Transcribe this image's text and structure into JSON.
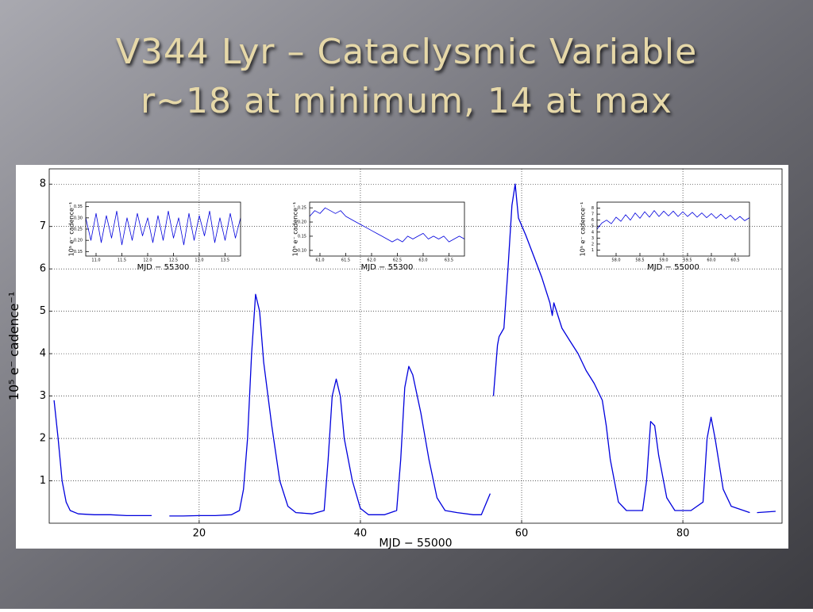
{
  "chart_data": [
    {
      "type": "line",
      "title": "V344 Lyr – Cataclysmic Variable",
      "subtitle": "r~18 at minimum, 14 at max",
      "xlabel": "MJD − 55000",
      "ylabel": "10⁵ e⁻ cadence⁻¹",
      "color": "#0000dd",
      "grid": true,
      "xlim": [
        1.4,
        92.3
      ],
      "ylim": [
        0,
        8.36
      ],
      "xticks": [
        20,
        40,
        60,
        80
      ],
      "yticks": [
        1,
        2,
        3,
        4,
        5,
        6,
        7,
        8
      ],
      "x": [
        2.0,
        2.5,
        3.0,
        3.5,
        4.0,
        5,
        7,
        9,
        11,
        13,
        14.1,
        15,
        16.3,
        18,
        20,
        22,
        24,
        25,
        25.5,
        26,
        26.5,
        27,
        27.5,
        28,
        29,
        30,
        31,
        32,
        34,
        35.5,
        36,
        36.5,
        37,
        37.5,
        38,
        39,
        40,
        41,
        43,
        44.5,
        45,
        45.5,
        46,
        46.5,
        47.5,
        48.5,
        49.5,
        50.5,
        52,
        54,
        55,
        56.1,
        56.3,
        56.5,
        57,
        57.2,
        57.8,
        58.3,
        58.8,
        59.2,
        59.6,
        60.5,
        61.5,
        62.5,
        63.5,
        63.8,
        64,
        65,
        66,
        67,
        68,
        69,
        70,
        70.5,
        71,
        72,
        73,
        75,
        75.5,
        76,
        76.5,
        77,
        78,
        79,
        81,
        82.5,
        83,
        83.5,
        84,
        85,
        86,
        88.3,
        88.8,
        89.2,
        91.5
      ],
      "values": [
        2.9,
        2.0,
        1.0,
        0.5,
        0.3,
        0.22,
        0.2,
        0.2,
        0.18,
        0.18,
        0.18,
        null,
        0.17,
        0.17,
        0.18,
        0.18,
        0.2,
        0.3,
        0.8,
        2.0,
        4.0,
        5.4,
        5.0,
        3.8,
        2.3,
        1.0,
        0.4,
        0.25,
        0.22,
        0.3,
        1.5,
        3.0,
        3.4,
        3.0,
        2.0,
        1.0,
        0.35,
        0.2,
        0.2,
        0.3,
        1.5,
        3.2,
        3.7,
        3.5,
        2.6,
        1.5,
        0.6,
        0.3,
        0.25,
        0.2,
        0.2,
        0.7,
        null,
        3.0,
        4.2,
        4.4,
        4.6,
        6.0,
        7.5,
        8.0,
        7.2,
        6.8,
        6.3,
        5.8,
        5.2,
        4.9,
        5.2,
        4.6,
        4.3,
        4.0,
        3.6,
        3.3,
        2.9,
        2.3,
        1.5,
        0.5,
        0.3,
        0.3,
        1.0,
        2.4,
        2.3,
        1.6,
        0.6,
        0.3,
        0.3,
        0.5,
        2.0,
        2.5,
        2.0,
        0.8,
        0.4,
        0.25,
        null,
        0.25,
        0.28
      ]
    },
    {
      "type": "line",
      "xlabel": "MJD − 55300",
      "ylabel": "10⁵ e⁻ cadence⁻¹",
      "color": "#0000dd",
      "grid": false,
      "xlim": [
        10.8,
        13.8
      ],
      "ylim": [
        0.13,
        0.37
      ],
      "xticks": [
        {
          "value": 11.0,
          "label": "11.0"
        },
        11.5,
        {
          "value": 12.0,
          "label": "12.0"
        },
        12.5,
        {
          "value": 13.0,
          "label": "13.0"
        },
        13.5
      ],
      "yticks": [
        0.15,
        {
          "value": 0.2,
          "label": "0.20"
        },
        0.25,
        {
          "value": 0.3,
          "label": "0.30"
        },
        0.35
      ],
      "x": [
        10.8,
        10.9,
        11.0,
        11.1,
        11.2,
        11.3,
        11.4,
        11.5,
        11.6,
        11.7,
        11.8,
        11.9,
        12.0,
        12.1,
        12.2,
        12.3,
        12.4,
        12.5,
        12.6,
        12.7,
        12.8,
        12.9,
        13.0,
        13.1,
        13.2,
        13.3,
        13.4,
        13.5,
        13.6,
        13.7,
        13.8
      ],
      "values": [
        0.3,
        0.2,
        0.32,
        0.19,
        0.31,
        0.21,
        0.33,
        0.18,
        0.3,
        0.2,
        0.32,
        0.22,
        0.3,
        0.19,
        0.31,
        0.2,
        0.33,
        0.21,
        0.3,
        0.18,
        0.32,
        0.2,
        0.31,
        0.22,
        0.33,
        0.19,
        0.3,
        0.2,
        0.32,
        0.21,
        0.3
      ]
    },
    {
      "type": "line",
      "xlabel": "MJD − 55300",
      "ylabel": "10⁵ e⁻ cadence⁻¹",
      "color": "#0000dd",
      "grid": false,
      "xlim": [
        60.8,
        63.8
      ],
      "ylim": [
        0.08,
        0.27
      ],
      "xticks": [
        {
          "value": 61.0,
          "label": "61.0"
        },
        61.5,
        {
          "value": 62.0,
          "label": "62.0"
        },
        62.5,
        {
          "value": 63.0,
          "label": "63.0"
        },
        63.5
      ],
      "yticks": [
        {
          "value": 0.1,
          "label": "0.10"
        },
        0.15,
        {
          "value": 0.2,
          "label": "0.20"
        },
        0.25
      ],
      "x": [
        60.8,
        60.9,
        61.0,
        61.1,
        61.2,
        61.3,
        61.4,
        61.5,
        61.6,
        61.7,
        61.8,
        61.9,
        62.0,
        62.1,
        62.2,
        62.3,
        62.4,
        62.5,
        62.6,
        62.7,
        62.8,
        62.9,
        63.0,
        63.1,
        63.2,
        63.3,
        63.4,
        63.5,
        63.6,
        63.7,
        63.8
      ],
      "values": [
        0.22,
        0.24,
        0.23,
        0.25,
        0.24,
        0.23,
        0.24,
        0.22,
        0.21,
        0.2,
        0.19,
        0.18,
        0.17,
        0.16,
        0.15,
        0.14,
        0.13,
        0.14,
        0.13,
        0.15,
        0.14,
        0.15,
        0.16,
        0.14,
        0.15,
        0.14,
        0.15,
        0.13,
        0.14,
        0.15,
        0.14
      ]
    },
    {
      "type": "line",
      "xlabel": "MJD − 55000",
      "ylabel": "10⁵ e⁻ cadence⁻¹",
      "color": "#0000dd",
      "grid": false,
      "xlim": [
        57.6,
        60.8
      ],
      "ylim": [
        0,
        9
      ],
      "xticks": [
        {
          "value": 58.0,
          "label": "58.0"
        },
        58.5,
        {
          "value": 59.0,
          "label": "59.0"
        },
        59.5,
        {
          "value": 60.0,
          "label": "60.0"
        },
        60.5
      ],
      "yticks": [
        1,
        2,
        3,
        4,
        5,
        6,
        7,
        8
      ],
      "x": [
        57.6,
        57.7,
        57.8,
        57.9,
        58.0,
        58.1,
        58.2,
        58.3,
        58.4,
        58.5,
        58.6,
        58.7,
        58.8,
        58.9,
        59.0,
        59.1,
        59.2,
        59.3,
        59.4,
        59.5,
        59.6,
        59.7,
        59.8,
        59.9,
        60.0,
        60.1,
        60.2,
        60.3,
        60.4,
        60.5,
        60.6,
        60.7,
        60.8
      ],
      "values": [
        4.5,
        5.5,
        6.0,
        5.4,
        6.5,
        5.8,
        6.9,
        6.0,
        7.2,
        6.3,
        7.4,
        6.5,
        7.6,
        6.6,
        7.5,
        6.7,
        7.5,
        6.6,
        7.4,
        6.6,
        7.3,
        6.5,
        7.2,
        6.4,
        7.1,
        6.3,
        7.0,
        6.2,
        6.8,
        6.0,
        6.6,
        5.9,
        6.4
      ]
    }
  ]
}
